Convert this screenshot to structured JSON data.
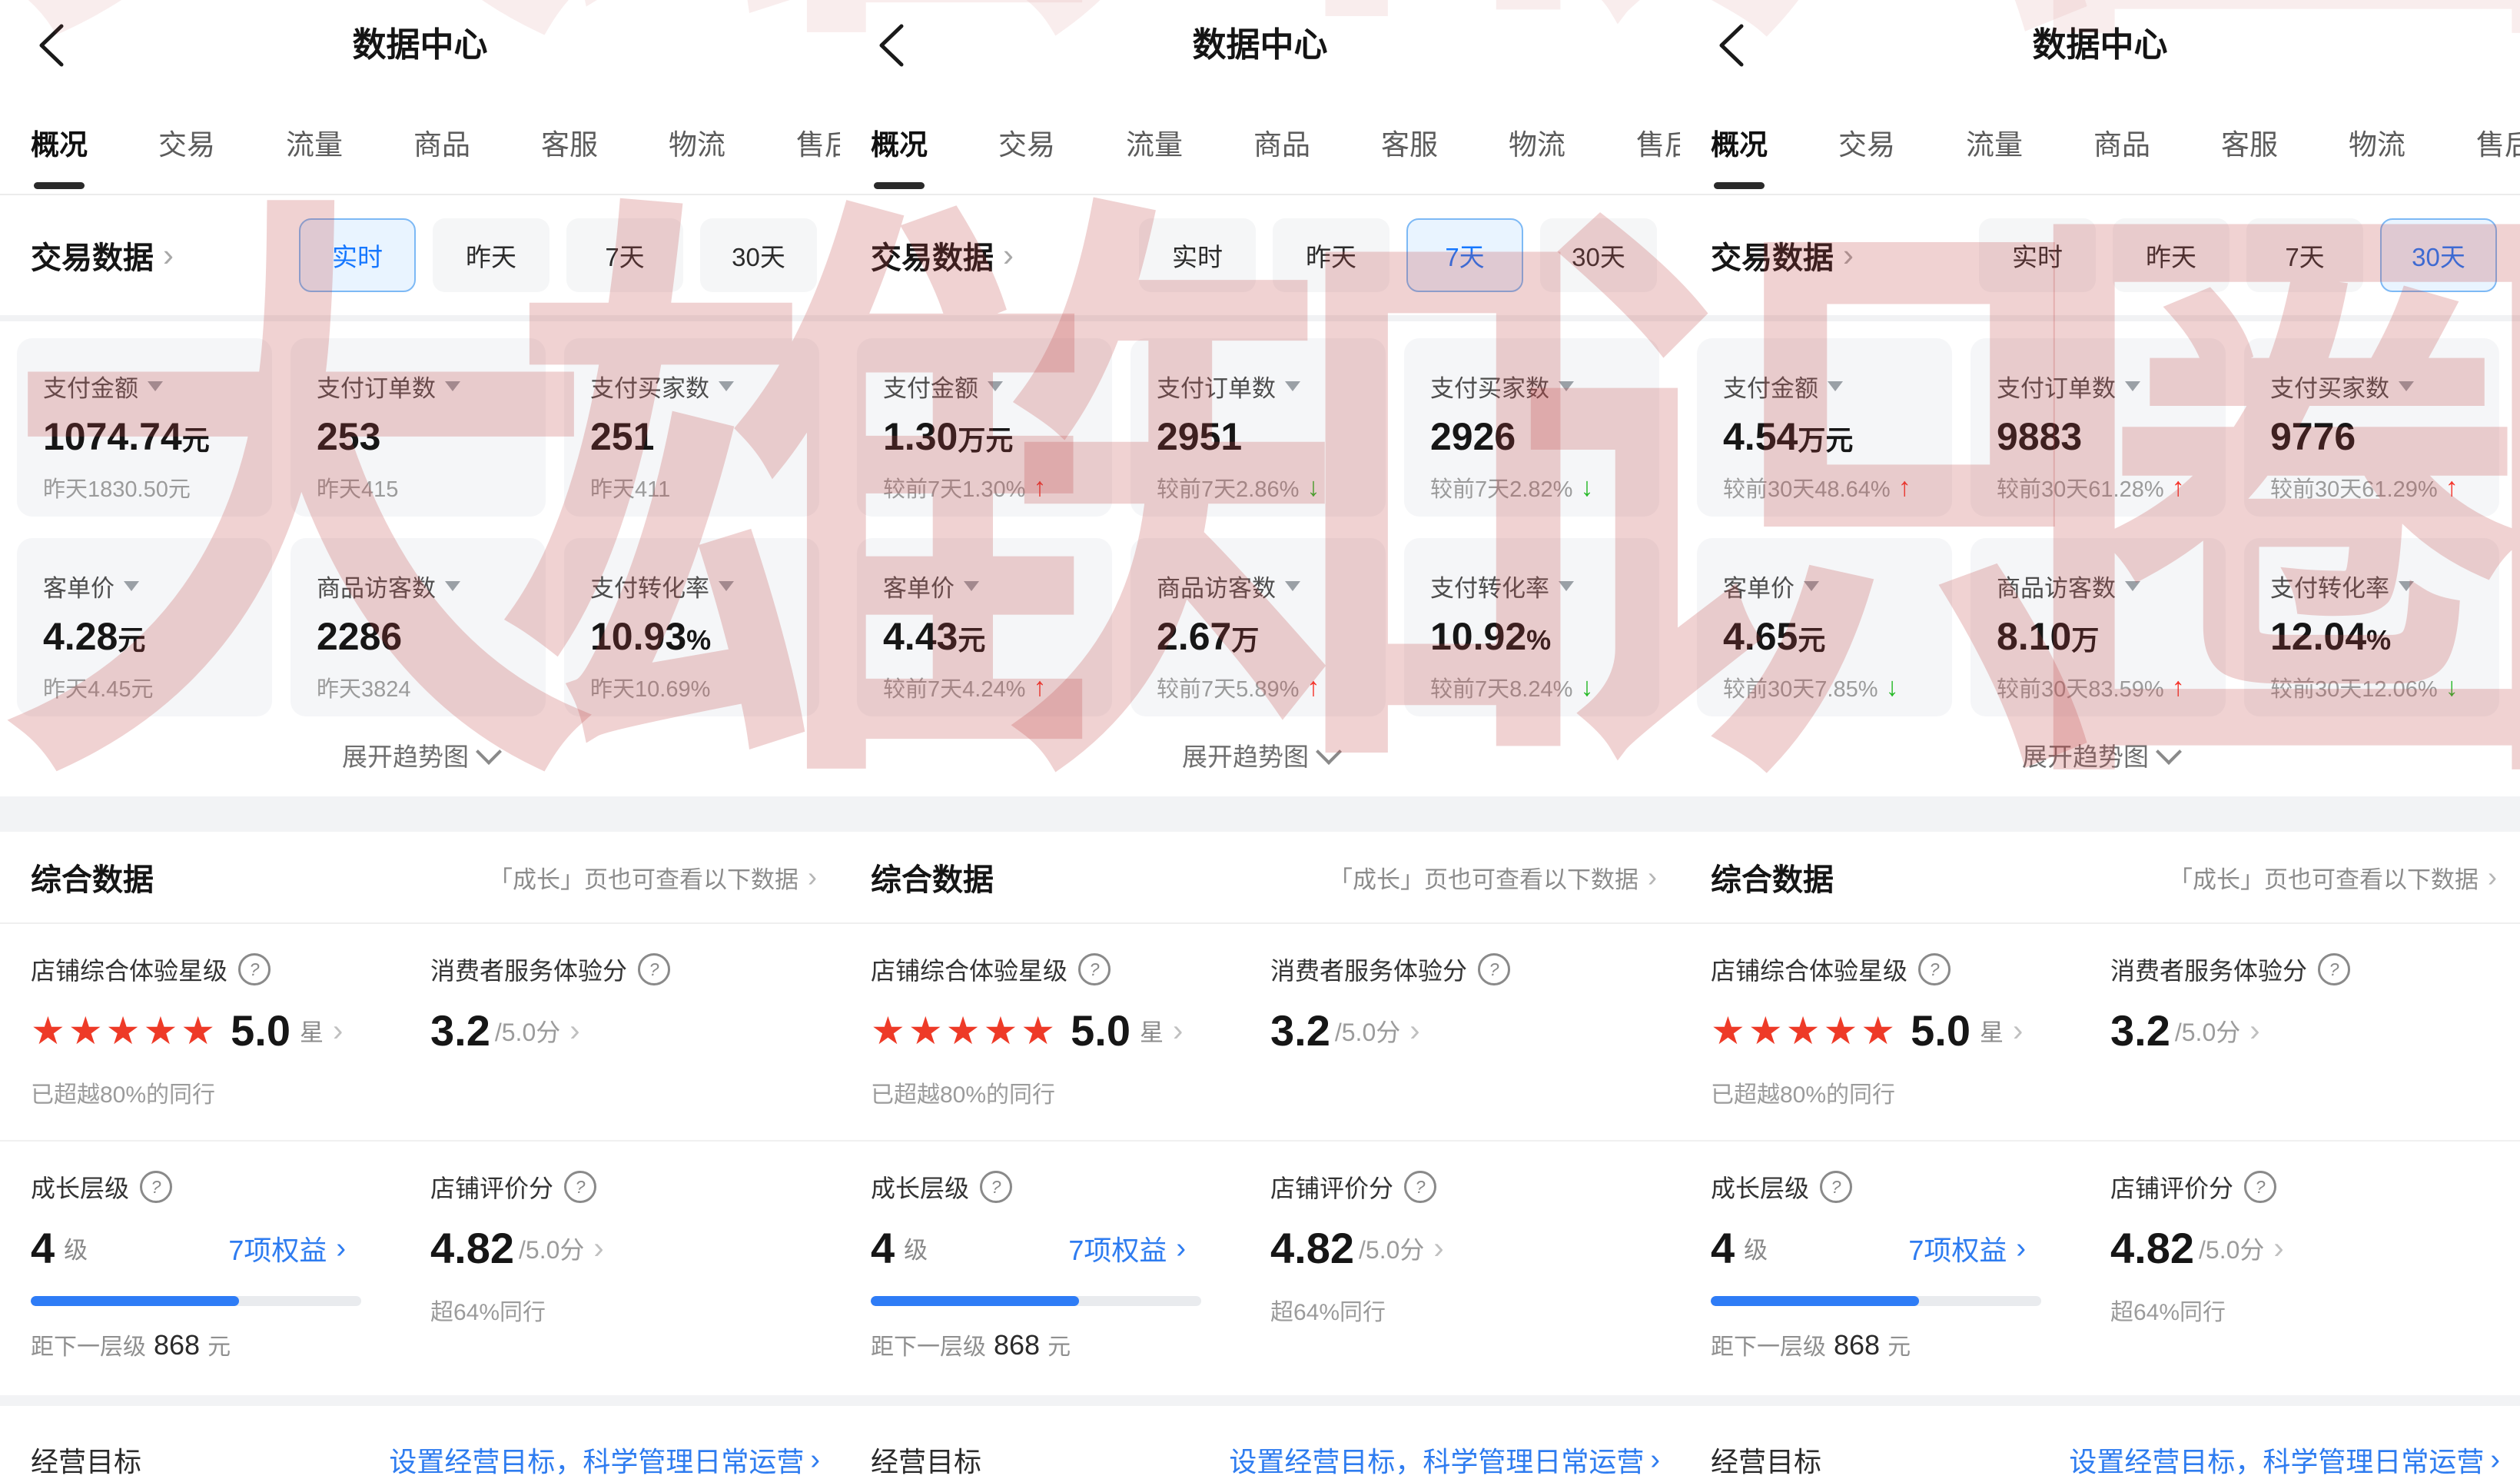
{
  "watermark": {
    "text": "大雄知识圈",
    "color": "#c14444"
  },
  "icons": {
    "star": "★",
    "up": "↑",
    "down": "↓",
    "chevron": "›",
    "question": "?"
  },
  "panels_shared": {
    "header": {
      "title": "数据中心"
    },
    "tabs": [
      {
        "label": "概况"
      },
      {
        "label": "交易"
      },
      {
        "label": "流量"
      },
      {
        "label": "商品"
      },
      {
        "label": "客服"
      },
      {
        "label": "物流"
      },
      {
        "label": "售后"
      }
    ],
    "trade": {
      "title": "交易数据",
      "filters": [
        "实时",
        "昨天",
        "7天",
        "30天"
      ],
      "expand_label": "展开趋势图"
    },
    "summary": {
      "title": "综合数据",
      "growth_link": "「成长」页也可查看以下数据",
      "star_card": {
        "label": "店铺综合体验星级",
        "stars_display": "★★★★★",
        "value": "5.0",
        "unit": "星",
        "sub": "已超越80%的同行"
      },
      "service_card": {
        "label": "消费者服务体验分",
        "value": "3.2",
        "denom": "/5.0分"
      },
      "level_card": {
        "label": "成长层级",
        "value": "4",
        "unit": "级",
        "benefit_link": "7项权益",
        "progress_pct": 63,
        "sub_prefix": "距下一层级",
        "sub_value": "868",
        "sub_unit": "元"
      },
      "rating_card": {
        "label": "店铺评价分",
        "value": "4.82",
        "denom": "/5.0分",
        "sub": "超64%同行"
      }
    },
    "goal": {
      "label": "经营目标",
      "link": "设置经营目标，科学管理日常运营"
    }
  },
  "panels": [
    {
      "name": "realtime",
      "selected_filter": 0,
      "metrics": [
        {
          "label": "支付金额",
          "value": "1074.74",
          "unit": "元",
          "sub": "昨天1830.50元",
          "trend": null
        },
        {
          "label": "支付订单数",
          "value": "253",
          "unit": "",
          "sub": "昨天415",
          "trend": null
        },
        {
          "label": "支付买家数",
          "value": "251",
          "unit": "",
          "sub": "昨天411",
          "trend": null
        },
        {
          "label": "客单价",
          "value": "4.28",
          "unit": "元",
          "sub": "昨天4.45元",
          "trend": null
        },
        {
          "label": "商品访客数",
          "value": "2286",
          "unit": "",
          "sub": "昨天3824",
          "trend": null
        },
        {
          "label": "支付转化率",
          "value": "10.93",
          "unit": "%",
          "sub": "昨天10.69%",
          "trend": null
        }
      ]
    },
    {
      "name": "7day",
      "selected_filter": 2,
      "metrics": [
        {
          "label": "支付金额",
          "value": "1.30",
          "unit": "万元",
          "sub": "较前7天1.30%",
          "trend": "up"
        },
        {
          "label": "支付订单数",
          "value": "2951",
          "unit": "",
          "sub": "较前7天2.86%",
          "trend": "down"
        },
        {
          "label": "支付买家数",
          "value": "2926",
          "unit": "",
          "sub": "较前7天2.82%",
          "trend": "down"
        },
        {
          "label": "客单价",
          "value": "4.43",
          "unit": "元",
          "sub": "较前7天4.24%",
          "trend": "up"
        },
        {
          "label": "商品访客数",
          "value": "2.67",
          "unit": "万",
          "sub": "较前7天5.89%",
          "trend": "up"
        },
        {
          "label": "支付转化率",
          "value": "10.92",
          "unit": "%",
          "sub": "较前7天8.24%",
          "trend": "down"
        }
      ]
    },
    {
      "name": "30day",
      "selected_filter": 3,
      "metrics": [
        {
          "label": "支付金额",
          "value": "4.54",
          "unit": "万元",
          "sub": "较前30天48.64%",
          "trend": "up"
        },
        {
          "label": "支付订单数",
          "value": "9883",
          "unit": "",
          "sub": "较前30天61.28%",
          "trend": "up"
        },
        {
          "label": "支付买家数",
          "value": "9776",
          "unit": "",
          "sub": "较前30天61.29%",
          "trend": "up"
        },
        {
          "label": "客单价",
          "value": "4.65",
          "unit": "元",
          "sub": "较前30天7.85%",
          "trend": "down"
        },
        {
          "label": "商品访客数",
          "value": "8.10",
          "unit": "万",
          "sub": "较前30天83.59%",
          "trend": "up"
        },
        {
          "label": "支付转化率",
          "value": "12.04",
          "unit": "%",
          "sub": "较前30天12.06%",
          "trend": "down"
        }
      ]
    }
  ],
  "colors": {
    "accent_blue": "#2e7cf0",
    "chip_selected_bg": "#e9f4ff",
    "chip_selected_border": "#7db9f5",
    "chip_selected_text": "#1677ff",
    "star_red": "#ee3a27",
    "trend_up_red": "#f5352b",
    "trend_down_green": "#27b928",
    "watermark_red": "#c14444"
  }
}
